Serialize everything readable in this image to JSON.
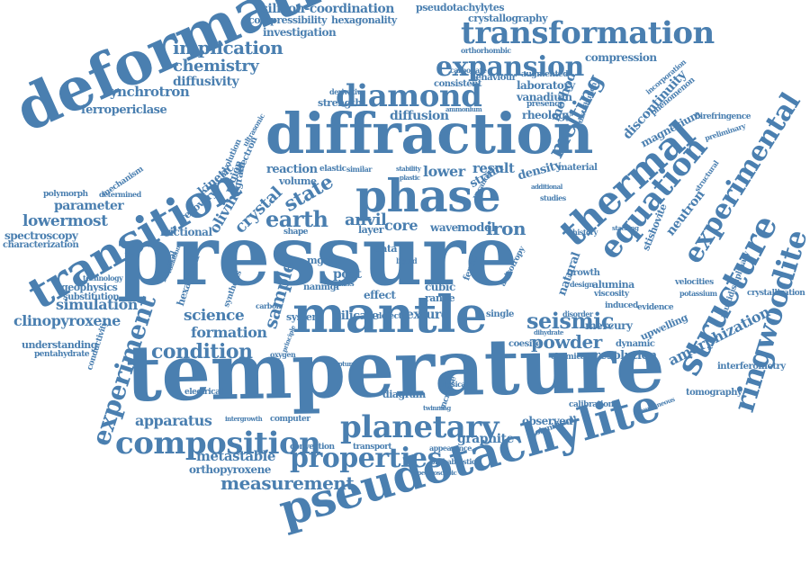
{
  "color": "#4a7fb0",
  "words": [
    "pressure",
    "temperature",
    "deformation",
    "diffraction",
    "mantle",
    "pseudotachylite",
    "phase",
    "transition",
    "thermal",
    "ringwoodite",
    "structure",
    "experiment",
    "planetary",
    "composition",
    "properties",
    "diamond",
    "transformation",
    "expansion",
    "equation",
    "experimental",
    "earth",
    "condition",
    "melting",
    "state",
    "seismic",
    "measurement",
    "powder",
    "anvil",
    "iron",
    "core",
    "crystal",
    "olivine",
    "implication",
    "chemistry",
    "synchrotron",
    "diffusivity",
    "ferropericlase",
    "lowermost",
    "apparatus",
    "formation",
    "science",
    "sample",
    "metastable",
    "orthopyroxene",
    "clinopyroxene",
    "simulation",
    "amorphization",
    "silicon-coordination",
    "compressibility",
    "investigation",
    "hexagonality",
    "pseudotachylytes",
    "crystallography",
    "compression",
    "laboratory",
    "vanadium",
    "method",
    "discontinuity",
    "magnesium",
    "diffusion",
    "rheology",
    "kinetic",
    "parameter",
    "spectroscopy",
    "characterization",
    "lower",
    "result",
    "density",
    "strain",
    "neutron",
    "stishovite",
    "frictional",
    "geophysics",
    "substitution",
    "understanding",
    "pentahydrate",
    "conductivity",
    "reaction",
    "volume",
    "upwelling",
    "mercury",
    "dynamic",
    "resolution",
    "graphite",
    "observed",
    "tomography",
    "interferometry",
    "crystallization",
    "multidisciplinary",
    "velocities",
    "potassium",
    "birefringence",
    "preliminary",
    "texture",
    "silicate",
    "system",
    "natural",
    "growth",
    "alumina",
    "viscosity",
    "electrical",
    "computer",
    "convection",
    "transport",
    "diagram",
    "coesite",
    "chemical",
    "significant",
    "post",
    "model",
    "wave",
    "cubic",
    "range",
    "data",
    "effect",
    "mgsio",
    "nanmgf",
    "glass",
    "layer",
    "evidence",
    "induced",
    "calibration",
    "behaviour",
    "consistent",
    "augmented",
    "carbonate",
    "orthorhombic",
    "incorporation",
    "phenomenon",
    "mechanism",
    "polymorph",
    "determined",
    "recovery",
    "region",
    "grain",
    "electron",
    "evolution",
    "strength",
    "derivative",
    "ultrasonic",
    "hexagonal",
    "mineral",
    "shape",
    "ferric",
    "increase",
    "defect",
    "single",
    "disorder",
    "material",
    "structural",
    "probabilistic",
    "spectroscopic",
    "appearance",
    "physical",
    "oxygen",
    "carbon",
    "principle",
    "rupture",
    "design",
    "distribution",
    "presence",
    "ammonium",
    "stability",
    "elastic",
    "similar",
    "plastic",
    "additional",
    "studies",
    "history",
    "stacking",
    "dihydrate",
    "vacancies",
    "twinning",
    "anisotropy",
    "intergrowth",
    "liquid",
    "simultaneous",
    "technology",
    "radiation",
    "synthesis"
  ]
}
